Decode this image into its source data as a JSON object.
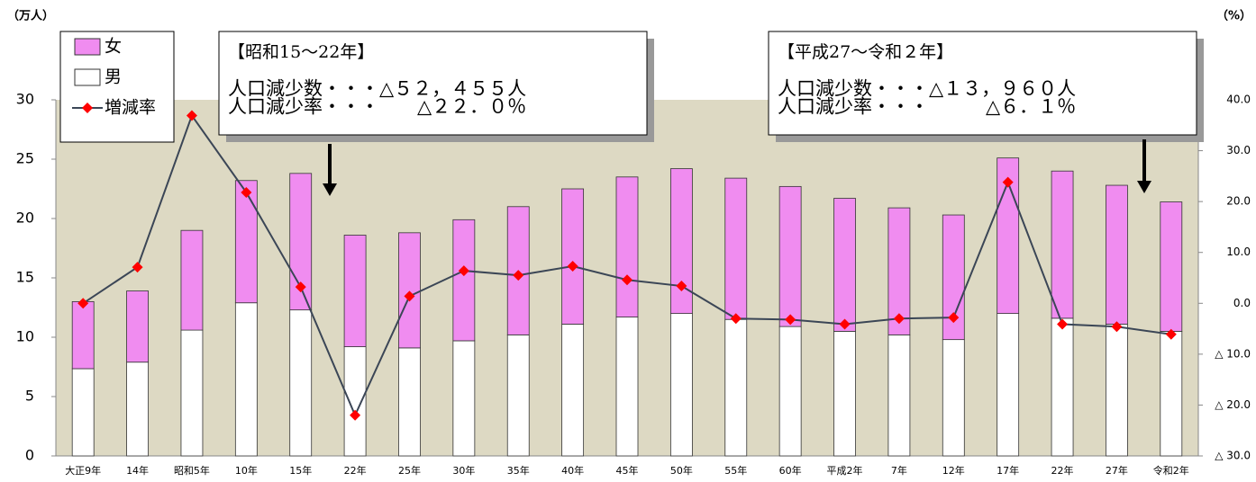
{
  "chart_data": {
    "type": "bar-line",
    "y_unit": "（万人）",
    "y2_unit": "（%）",
    "categories": [
      "大正9年",
      "14年",
      "昭和5年",
      "10年",
      "15年",
      "22年",
      "25年",
      "30年",
      "35年",
      "40年",
      "45年",
      "50年",
      "55年",
      "60年",
      "平成2年",
      "7年",
      "12年",
      "17年",
      "22年",
      "27年",
      "令和2年"
    ],
    "series": [
      {
        "name": "女",
        "type": "bar",
        "color": "#f08cf0",
        "values": [
          5.65,
          6.0,
          8.4,
          10.3,
          11.5,
          9.4,
          9.7,
          10.2,
          10.8,
          11.4,
          11.8,
          12.2,
          11.9,
          11.8,
          11.2,
          10.7,
          10.5,
          13.1,
          12.4,
          11.7,
          10.9
        ]
      },
      {
        "name": "男",
        "type": "bar",
        "color": "#ffffff",
        "values": [
          7.35,
          7.9,
          10.6,
          12.9,
          12.3,
          9.2,
          9.1,
          9.7,
          10.2,
          11.1,
          11.7,
          12.0,
          11.5,
          10.9,
          10.5,
          10.2,
          9.8,
          12.0,
          11.6,
          11.1,
          10.5
        ]
      },
      {
        "name": "増減率",
        "type": "line",
        "axis": "y2",
        "color": "#3b4656",
        "marker_color": "#ff0000",
        "values": [
          0.0,
          7.1,
          36.9,
          21.8,
          3.2,
          -22.0,
          1.4,
          6.4,
          5.5,
          7.3,
          4.6,
          3.4,
          -3.0,
          -3.2,
          -4.1,
          -3.0,
          -2.8,
          23.8,
          -4.1,
          -4.6,
          -6.1
        ]
      }
    ],
    "ylim": [
      0,
      30
    ],
    "yticks": [
      0,
      5,
      10,
      15,
      20,
      25,
      30
    ],
    "y2lim": [
      -30,
      40
    ],
    "y2ticks": [
      {
        "value": 40,
        "label": "40.0"
      },
      {
        "value": 30,
        "label": "30.0"
      },
      {
        "value": 20,
        "label": "20.0"
      },
      {
        "value": 10,
        "label": "10.0"
      },
      {
        "value": 0,
        "label": "0.0"
      },
      {
        "value": -10,
        "label": "△ 10.0"
      },
      {
        "value": -20,
        "label": "△ 20.0"
      },
      {
        "value": -30,
        "label": "△ 30.0"
      }
    ],
    "plot_background": "#ddd9c3",
    "grid": false,
    "legend": "top-left",
    "annotations": [
      {
        "title": "【昭和15～22年】",
        "lines": [
          "人口減少数・・・△５２，４５５人",
          "人口減少率・・・　　△２２．０％"
        ]
      },
      {
        "title": "【平成27～令和２年】",
        "lines": [
          "人口減少数・・・△１３，９６０人",
          "人口減少率・・・　　　△６．１％"
        ]
      }
    ]
  }
}
